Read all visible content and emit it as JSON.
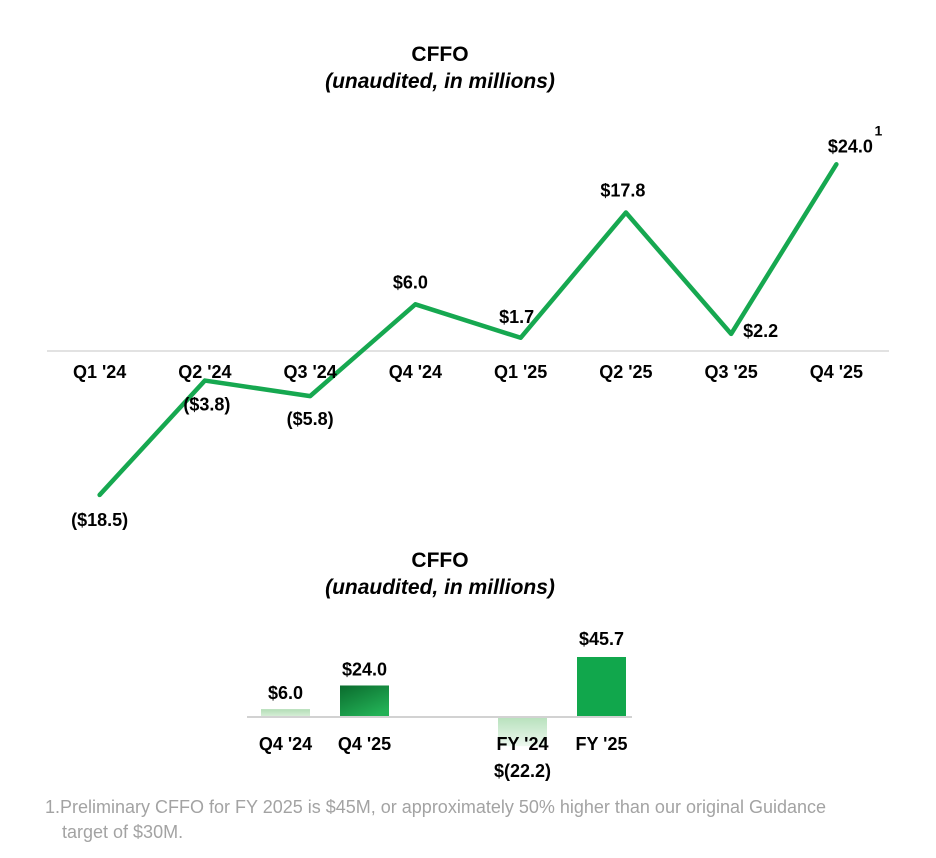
{
  "chart_data": [
    {
      "type": "line",
      "title": "CFFO",
      "subtitle": "(unaudited, in millions)",
      "categories": [
        "Q1 '24",
        "Q2 '24",
        "Q3 '24",
        "Q4 '24",
        "Q1 '25",
        "Q2 '25",
        "Q3 '25",
        "Q4 '25"
      ],
      "values": [
        -18.5,
        -3.8,
        -5.8,
        6.0,
        1.7,
        17.8,
        2.2,
        24.0
      ],
      "labels": [
        "($18.5)",
        "($3.8)",
        "($5.8)",
        "$6.0",
        "$1.7",
        "$17.8",
        "$2.2",
        "$24.0"
      ],
      "footnote_marker": "1",
      "line_color": "#16a850",
      "axis_color": "#d9d9d9",
      "label_color": "#000000",
      "ylim": [
        -24,
        28
      ],
      "grid": false,
      "legend": "none",
      "xlabel": "",
      "ylabel": ""
    },
    {
      "type": "bar",
      "title": "CFFO",
      "subtitle": "(unaudited, in millions)",
      "categories": [
        "Q4 '24",
        "Q4 '25",
        "FY '24",
        "FY '25"
      ],
      "values": [
        6.0,
        24.0,
        -22.2,
        45.7
      ],
      "labels": [
        "$6.0",
        "$24.0",
        "$(22.2)",
        "$45.7"
      ],
      "axis_color": "#d2d2d2",
      "label_color": "#000000",
      "ylim": [
        -30,
        52
      ],
      "grid": false,
      "legend": "none",
      "bar_styles": [
        {
          "direction": "vertical",
          "stops": [
            "#b2ddb5",
            "#d9f0da"
          ]
        },
        {
          "direction": "diagonal",
          "stops": [
            "#0a6b2d",
            "#23b156"
          ]
        },
        {
          "direction": "vertical",
          "stops": [
            "#b7e1bc",
            "#edf8ef"
          ]
        },
        {
          "direction": "vertical",
          "stops": [
            "#11a74c",
            "#11a74c"
          ]
        }
      ]
    }
  ],
  "footnote": {
    "lines": [
      "1.Preliminary CFFO for FY 2025 is $45M, or approximately 50% higher than our original Guidance",
      "target of $30M."
    ],
    "color": "#a3a3a3"
  }
}
